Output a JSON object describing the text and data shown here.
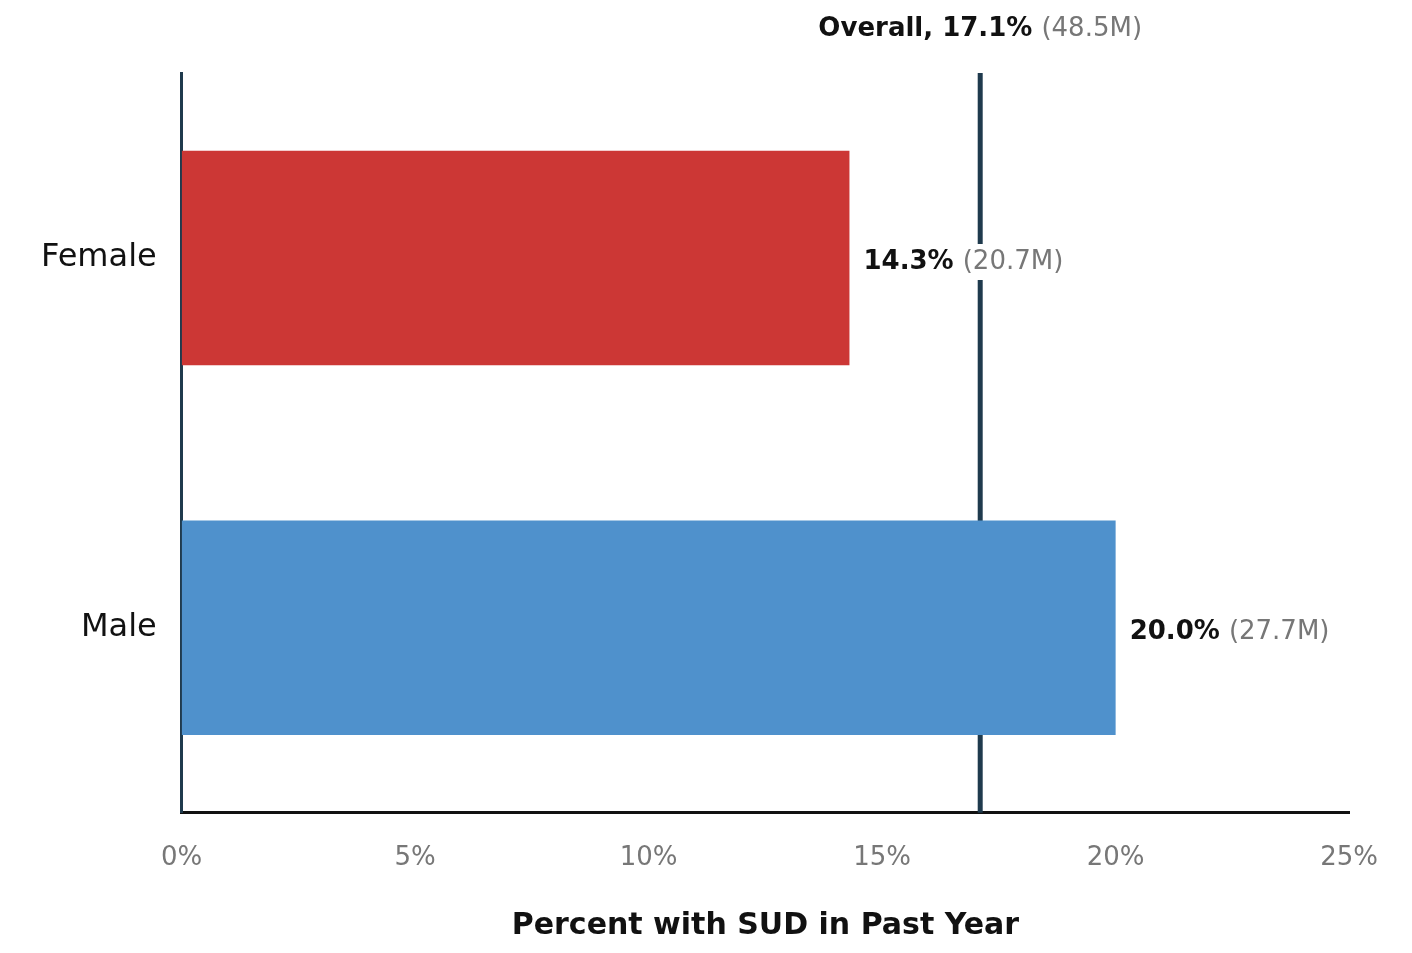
{
  "chart_data": {
    "type": "bar",
    "orientation": "horizontal",
    "categories": [
      "Female",
      "Male"
    ],
    "values": [
      14.3,
      20.0
    ],
    "colors": [
      "#cc3735",
      "#4f91cc"
    ],
    "value_labels": [
      "14.3% (20.7M)",
      "20.0% (27.7M)"
    ],
    "xlim": [
      0,
      25
    ],
    "xticks": [
      {
        "value": 0,
        "label": "0%"
      },
      {
        "value": 5,
        "label": "5%"
      },
      {
        "value": 10,
        "label": "10%"
      },
      {
        "value": 15,
        "label": "15%"
      },
      {
        "value": 20,
        "label": "20%"
      },
      {
        "value": 25,
        "label": "25%"
      }
    ],
    "xlabel": "Percent with SUD in Past Year",
    "ref_lines": [
      {
        "axis": "x",
        "value": 17.1,
        "label": "Overall, 17.1% (48.5M)",
        "color": "#1f3a4d"
      }
    ]
  }
}
